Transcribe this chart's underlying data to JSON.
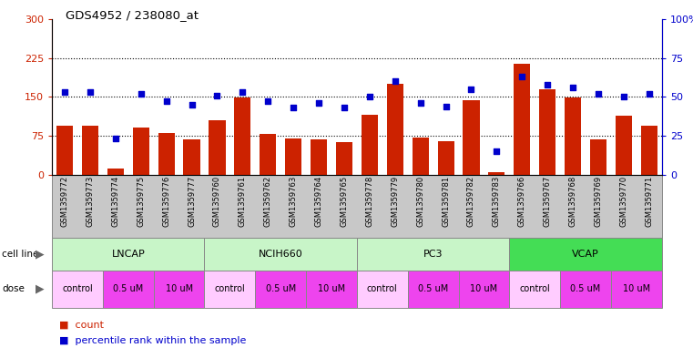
{
  "title": "GDS4952 / 238080_at",
  "samples": [
    "GSM1359772",
    "GSM1359773",
    "GSM1359774",
    "GSM1359775",
    "GSM1359776",
    "GSM1359777",
    "GSM1359760",
    "GSM1359761",
    "GSM1359762",
    "GSM1359763",
    "GSM1359764",
    "GSM1359765",
    "GSM1359778",
    "GSM1359779",
    "GSM1359780",
    "GSM1359781",
    "GSM1359782",
    "GSM1359783",
    "GSM1359766",
    "GSM1359767",
    "GSM1359768",
    "GSM1359769",
    "GSM1359770",
    "GSM1359771"
  ],
  "counts": [
    95,
    95,
    12,
    90,
    80,
    68,
    105,
    148,
    78,
    70,
    68,
    62,
    115,
    175,
    72,
    65,
    143,
    5,
    213,
    165,
    148,
    68,
    113,
    95
  ],
  "percentiles": [
    53,
    53,
    23,
    52,
    47,
    45,
    51,
    53,
    47,
    43,
    46,
    43,
    50,
    60,
    46,
    44,
    55,
    15,
    63,
    58,
    56,
    52,
    50,
    52
  ],
  "cell_lines": [
    {
      "label": "LNCAP",
      "start": 0,
      "end": 6,
      "color": "#C8F5C8"
    },
    {
      "label": "NCIH660",
      "start": 6,
      "end": 12,
      "color": "#C8F5C8"
    },
    {
      "label": "PC3",
      "start": 12,
      "end": 18,
      "color": "#C8F5C8"
    },
    {
      "label": "VCAP",
      "start": 18,
      "end": 24,
      "color": "#44DD55"
    }
  ],
  "doses": [
    {
      "label": "control",
      "start": 0,
      "end": 2,
      "color": "#FFCCFF"
    },
    {
      "label": "0.5 uM",
      "start": 2,
      "end": 4,
      "color": "#EE44EE"
    },
    {
      "label": "10 uM",
      "start": 4,
      "end": 6,
      "color": "#EE44EE"
    },
    {
      "label": "control",
      "start": 6,
      "end": 8,
      "color": "#FFCCFF"
    },
    {
      "label": "0.5 uM",
      "start": 8,
      "end": 10,
      "color": "#EE44EE"
    },
    {
      "label": "10 uM",
      "start": 10,
      "end": 12,
      "color": "#EE44EE"
    },
    {
      "label": "control",
      "start": 12,
      "end": 14,
      "color": "#FFCCFF"
    },
    {
      "label": "0.5 uM",
      "start": 14,
      "end": 16,
      "color": "#EE44EE"
    },
    {
      "label": "10 uM",
      "start": 16,
      "end": 18,
      "color": "#EE44EE"
    },
    {
      "label": "control",
      "start": 18,
      "end": 20,
      "color": "#FFCCFF"
    },
    {
      "label": "0.5 uM",
      "start": 20,
      "end": 22,
      "color": "#EE44EE"
    },
    {
      "label": "10 uM",
      "start": 22,
      "end": 24,
      "color": "#EE44EE"
    }
  ],
  "bar_color": "#CC2200",
  "dot_color": "#0000CC",
  "ylim_left": [
    0,
    300
  ],
  "ylim_right": [
    0,
    100
  ],
  "yticks_left": [
    0,
    75,
    150,
    225,
    300
  ],
  "yticks_right": [
    0,
    25,
    50,
    75,
    100
  ],
  "hlines": [
    75,
    150,
    225
  ],
  "bg_color": "#FFFFFF",
  "plot_bg": "#FFFFFF",
  "label_bg": "#C8C8C8"
}
